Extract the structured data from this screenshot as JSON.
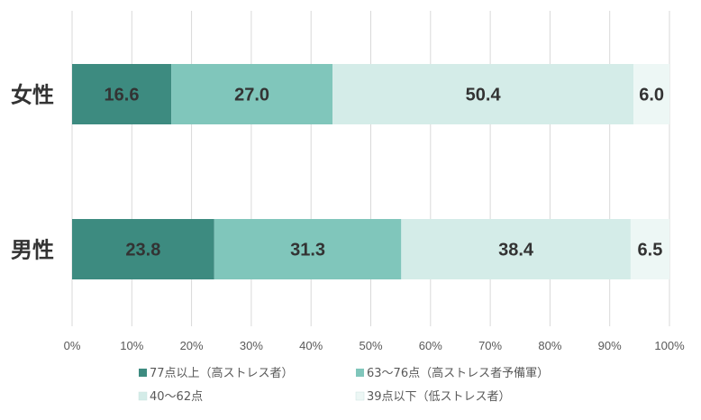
{
  "chart_data": {
    "type": "bar",
    "orientation": "horizontal",
    "stacked": true,
    "categories": [
      "女性",
      "男性"
    ],
    "series": [
      {
        "name": "77点以上（高ストレス者）",
        "values": [
          16.6,
          23.8
        ],
        "color": "#3d8b80"
      },
      {
        "name": "63〜76点（高ストレス者予備軍）",
        "values": [
          27.0,
          31.3
        ],
        "color": "#80c6bb"
      },
      {
        "name": "40〜62点",
        "values": [
          50.4,
          38.4
        ],
        "color": "#d4ece8"
      },
      {
        "name": "39点以下（低ストレス者）",
        "values": [
          6.0,
          6.5
        ],
        "color": "#edf7f5"
      }
    ],
    "xlim": [
      0,
      100
    ],
    "x_ticks": [
      "0%",
      "10%",
      "20%",
      "30%",
      "40%",
      "50%",
      "60%",
      "70%",
      "80%",
      "90%",
      "100%"
    ],
    "grid": true,
    "legend_position": "bottom"
  }
}
